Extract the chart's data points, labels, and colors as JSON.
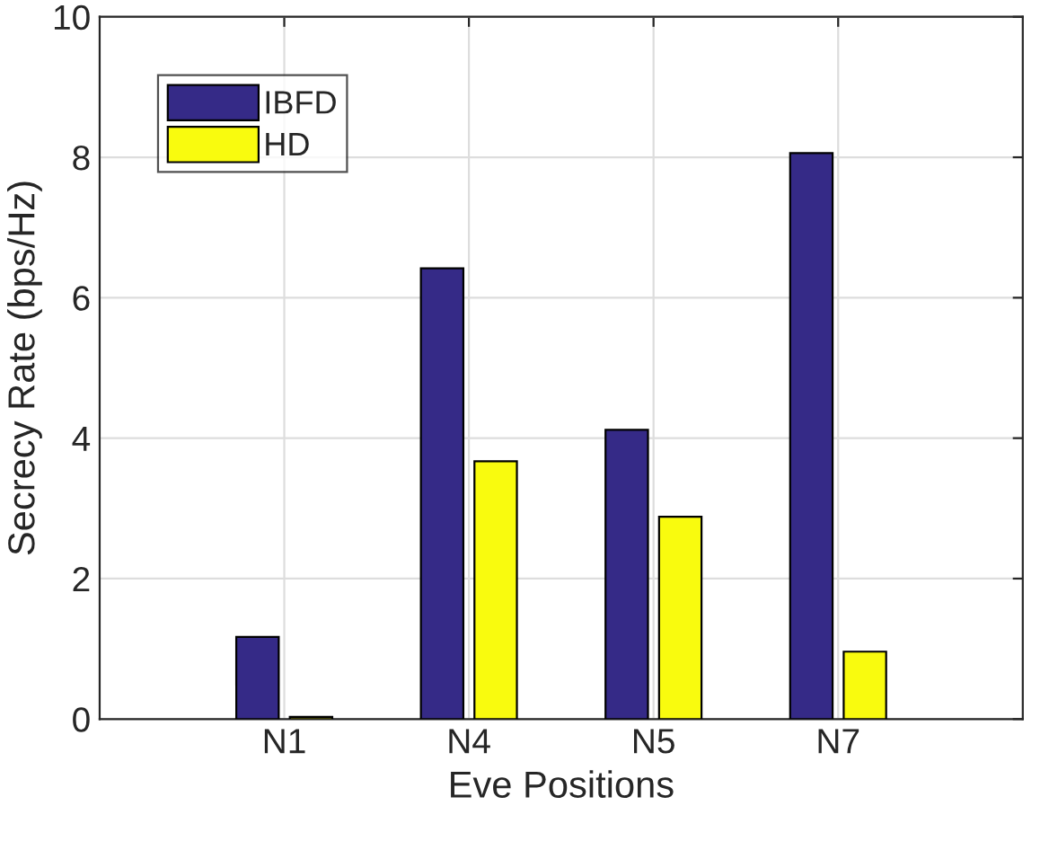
{
  "chart_data": {
    "type": "bar",
    "xlabel": "Eve Positions",
    "ylabel": "Secrecy Rate (bps/Hz)",
    "categories": [
      "N1",
      "N4",
      "N5",
      "N7"
    ],
    "series": [
      {
        "name": "IBFD",
        "color": "#352a87",
        "values": [
          1.17,
          6.42,
          4.12,
          8.06
        ]
      },
      {
        "name": "HD",
        "color": "#f9fb0e",
        "values": [
          0.03,
          3.67,
          2.88,
          0.96
        ]
      }
    ],
    "ylim": [
      0,
      10
    ],
    "yticks": [
      0,
      2,
      4,
      6,
      8,
      10
    ],
    "grid": true,
    "legend": "top left"
  }
}
